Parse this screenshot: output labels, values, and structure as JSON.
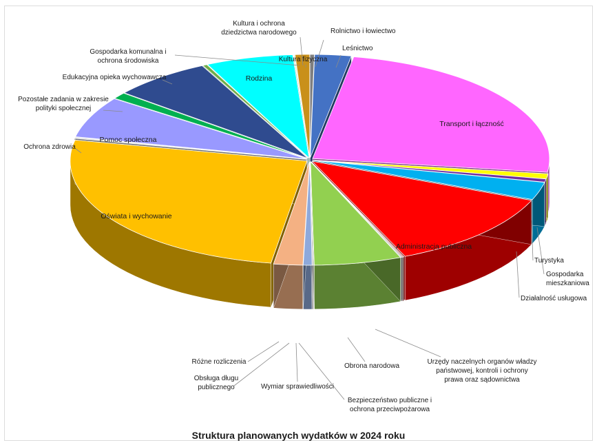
{
  "chart_data": {
    "type": "pie",
    "style": "3d-exploded",
    "title": "Struktura planowanych wydatków w 2024 roku",
    "legend": "none",
    "slices": [
      {
        "label": "Rolnictwo i łowiectwo",
        "value": 0.3,
        "color": "#7f7f7f"
      },
      {
        "label": "Leśnictwo",
        "value": 2.5,
        "color": "#4472c4"
      },
      {
        "label": "Transport i łączność",
        "value": 24.5,
        "color": "#ff66ff"
      },
      {
        "label": "Turystyka",
        "value": 0.8,
        "color": "#ffff00"
      },
      {
        "label": "Gospodarka mieszkaniowa",
        "value": 0.5,
        "color": "#7030a0"
      },
      {
        "label": "Działalność usługowa",
        "value": 2.8,
        "color": "#00b0f0"
      },
      {
        "label": "Administracja publiczna",
        "value": 12.5,
        "color": "#ff0000"
      },
      {
        "label": "Urzędy naczelnych organów władzy państwowej, kontroli i ochrony prawa oraz sądownictwa",
        "value": 0.1,
        "color": "#c0504d"
      },
      {
        "label": "Obrona narodowa",
        "value": 0.1,
        "color": "#a5a5a5"
      },
      {
        "label": "Bezpieczeństwo publiczne i ochrona przeciwpożarowa",
        "value": 6.0,
        "color": "#92d050"
      },
      {
        "label": "Wymiar sprawiedliwości",
        "value": 0.1,
        "color": "#bfbfbf"
      },
      {
        "label": "Obsługa długu publicznego",
        "value": 0.6,
        "color": "#8ea9db"
      },
      {
        "label": "Różne rozliczenia",
        "value": 2.0,
        "color": "#f4b183"
      },
      {
        "label": "Oświata i wychowanie",
        "value": 26.0,
        "color": "#ffc000"
      },
      {
        "label": "Ochrona zdrowia",
        "value": 0.2,
        "color": "#d9d9d9"
      },
      {
        "label": "Pomoc społeczna",
        "value": 6.5,
        "color": "#9999ff"
      },
      {
        "label": "Pozostałe zadania w zakresie polityki społecznej",
        "value": 1.0,
        "color": "#00b050"
      },
      {
        "label": "Edukacyjna opieka wychowawcza",
        "value": 6.8,
        "color": "#2f4b8f"
      },
      {
        "label": "Gospodarka komunalna i ochrona środowiska",
        "value": 0.3,
        "color": "#70ad47"
      },
      {
        "label": "Rodzina",
        "value": 6.0,
        "color": "#00ffff"
      },
      {
        "label": "Kultura fizyczna",
        "value": 0.1,
        "color": "#e2efda"
      },
      {
        "label": "Kultura i ochrona dziedzictwa narodowego",
        "value": 1.0,
        "color": "#c9901a"
      }
    ],
    "label_lines": {
      "Transport i łączność": [
        "Transport i łączność"
      ],
      "Administracja publiczna": [
        "Administracja publiczna"
      ],
      "Oświata i wychowanie": [
        "Oświata i wychowanie"
      ],
      "Pomoc społeczna": [
        "Pomoc społeczna"
      ],
      "Rodzina": [
        "Rodzina"
      ],
      "Rolnictwo i łowiectwo": [
        "Rolnictwo i łowiectwo"
      ],
      "Leśnictwo": [
        "Leśnictwo"
      ],
      "Turystyka": [
        "Turystyka"
      ],
      "Gospodarka mieszkaniowa": [
        "Gospodarka",
        "mieszkaniowa"
      ],
      "Działalność usługowa": [
        "Działalność usługowa"
      ],
      "Urzędy naczelnych organów władzy państwowej, kontroli i ochrony prawa oraz sądownictwa": [
        "Urzędy naczelnych organów władzy",
        "państwowej, kontroli i ochrony",
        "prawa oraz sądownictwa"
      ],
      "Obrona narodowa": [
        "Obrona narodowa"
      ],
      "Bezpieczeństwo publiczne i ochrona przeciwpożarowa": [
        "Bezpieczeństwo publiczne i",
        "ochrona przeciwpożarowa"
      ],
      "Wymiar sprawiedliwości": [
        "Wymiar sprawiedliwości"
      ],
      "Obsługa długu publicznego": [
        "Obsługa długu",
        "publicznego"
      ],
      "Różne rozliczenia": [
        "Różne rozliczenia"
      ],
      "Ochrona zdrowia": [
        "Ochrona zdrowia"
      ],
      "Pozostałe zadania w zakresie polityki społecznej": [
        "Pozostałe zadania w zakresie",
        "polityki społecznej"
      ],
      "Edukacyjna opieka wychowawcza": [
        "Edukacyjna opieka wychowawcza"
      ],
      "Gospodarka komunalna i ochrona środowiska": [
        "Gospodarka komunalna i",
        "ochrona środowiska"
      ],
      "Kultura fizyczna": [
        "Kultura fizyczna"
      ],
      "Kultura i ochrona dziedzictwa narodowego": [
        "Kultura i ochrona",
        "dziedzictwa narodowego"
      ]
    }
  }
}
